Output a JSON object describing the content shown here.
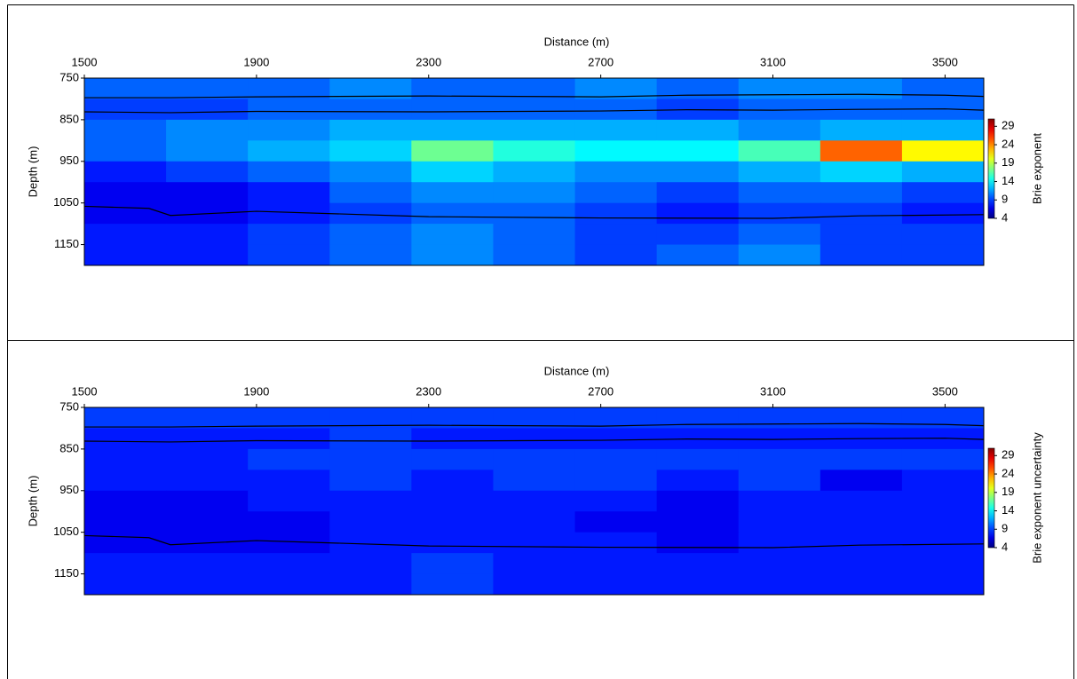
{
  "chart_data": [
    {
      "type": "heatmap",
      "x_label": "Distance (m)",
      "y_label": "Depth (m)",
      "colorbar_label": "Brie exponent",
      "x_bins": [
        1500,
        1690,
        1880,
        2070,
        2260,
        2450,
        2640,
        2830,
        3020,
        3210,
        3400,
        3590
      ],
      "y_bins": [
        750,
        800,
        850,
        900,
        950,
        1000,
        1050,
        1100,
        1150,
        1200
      ],
      "values": [
        [
          10,
          10,
          10,
          11,
          10,
          10,
          11,
          10,
          11,
          11,
          10
        ],
        [
          9,
          9,
          10,
          10,
          10,
          10,
          10,
          9,
          10,
          10,
          10
        ],
        [
          10,
          11,
          11,
          12,
          12,
          12,
          12,
          12,
          11,
          12,
          12
        ],
        [
          10,
          11,
          12,
          13,
          17,
          15,
          14,
          14,
          16,
          25,
          21
        ],
        [
          8,
          9,
          10,
          11,
          13,
          12,
          11,
          11,
          12,
          13,
          12
        ],
        [
          7,
          7,
          8,
          10,
          11,
          11,
          10,
          9,
          10,
          10,
          9
        ],
        [
          7,
          7,
          8,
          9,
          10,
          10,
          9,
          8,
          9,
          9,
          8
        ],
        [
          8,
          8,
          9,
          10,
          11,
          10,
          9,
          9,
          10,
          9,
          9
        ],
        [
          8,
          8,
          9,
          10,
          11,
          10,
          9,
          10,
          11,
          9,
          9
        ]
      ],
      "horizons": [
        {
          "x": [
            1500,
            1700,
            1900,
            2300,
            2700,
            2900,
            3100,
            3300,
            3500,
            3590
          ],
          "values": [
            797,
            797,
            795,
            793,
            795,
            791,
            790,
            789,
            791,
            794
          ]
        },
        {
          "x": [
            1500,
            1700,
            1900,
            2300,
            2700,
            2900,
            3100,
            3300,
            3500,
            3590
          ],
          "values": [
            831,
            833,
            830,
            831,
            829,
            826,
            827,
            825,
            824,
            827
          ]
        },
        {
          "x": [
            1500,
            1650,
            1700,
            1900,
            2300,
            2700,
            3100,
            3300,
            3590
          ],
          "values": [
            1058,
            1063,
            1080,
            1070,
            1083,
            1086,
            1087,
            1081,
            1078
          ]
        }
      ],
      "horizon_color": "#000000",
      "xlim": [
        1500,
        3590
      ],
      "ylim": [
        750,
        1200
      ],
      "xticks": [
        1500,
        1900,
        2300,
        2700,
        3100,
        3500
      ],
      "yticks": [
        750,
        850,
        950,
        1050,
        1150
      ],
      "clim": [
        4,
        31
      ],
      "cticks": [
        4,
        9,
        14,
        19,
        24,
        29
      ],
      "colormap": "jet"
    },
    {
      "type": "heatmap",
      "x_label": "Distance (m)",
      "y_label": "Depth (m)",
      "colorbar_label": "Brie exponent uncertainty",
      "x_bins": [
        1500,
        1690,
        1880,
        2070,
        2260,
        2450,
        2640,
        2830,
        3020,
        3210,
        3400,
        3590
      ],
      "y_bins": [
        750,
        800,
        850,
        900,
        950,
        1000,
        1050,
        1100,
        1150,
        1200
      ],
      "values": [
        [
          9,
          9,
          9,
          9,
          9,
          9,
          9,
          9,
          9,
          9,
          9
        ],
        [
          8,
          8,
          8,
          9,
          8,
          8,
          8,
          8,
          8,
          8,
          8
        ],
        [
          8,
          8,
          9,
          9,
          9,
          9,
          9,
          9,
          9,
          9,
          9
        ],
        [
          8,
          8,
          8,
          9,
          8,
          9,
          9,
          8,
          9,
          7,
          8
        ],
        [
          7,
          7,
          8,
          8,
          8,
          8,
          8,
          7,
          8,
          8,
          8
        ],
        [
          7,
          7,
          7,
          8,
          8,
          8,
          7,
          7,
          8,
          8,
          8
        ],
        [
          7,
          7,
          7,
          8,
          8,
          8,
          8,
          7,
          8,
          8,
          8
        ],
        [
          8,
          8,
          8,
          8,
          9,
          8,
          8,
          8,
          8,
          8,
          8
        ],
        [
          8,
          8,
          8,
          8,
          9,
          8,
          8,
          8,
          8,
          8,
          8
        ]
      ],
      "horizons": [
        {
          "x": [
            1500,
            1700,
            1900,
            2300,
            2700,
            2900,
            3100,
            3300,
            3500,
            3590
          ],
          "values": [
            797,
            797,
            795,
            793,
            795,
            791,
            790,
            789,
            791,
            794
          ]
        },
        {
          "x": [
            1500,
            1700,
            1900,
            2300,
            2700,
            2900,
            3100,
            3300,
            3500,
            3590
          ],
          "values": [
            831,
            833,
            830,
            831,
            829,
            826,
            827,
            825,
            824,
            827
          ]
        },
        {
          "x": [
            1500,
            1650,
            1700,
            1900,
            2300,
            2700,
            3100,
            3300,
            3590
          ],
          "values": [
            1058,
            1063,
            1080,
            1070,
            1083,
            1086,
            1087,
            1081,
            1078
          ]
        }
      ],
      "horizon_color": "#000000",
      "xlim": [
        1500,
        3590
      ],
      "ylim": [
        750,
        1200
      ],
      "xticks": [
        1500,
        1900,
        2300,
        2700,
        3100,
        3500
      ],
      "yticks": [
        750,
        850,
        950,
        1050,
        1150
      ],
      "clim": [
        4,
        31
      ],
      "cticks": [
        4,
        9,
        14,
        19,
        24,
        29
      ],
      "colormap": "jet"
    }
  ]
}
